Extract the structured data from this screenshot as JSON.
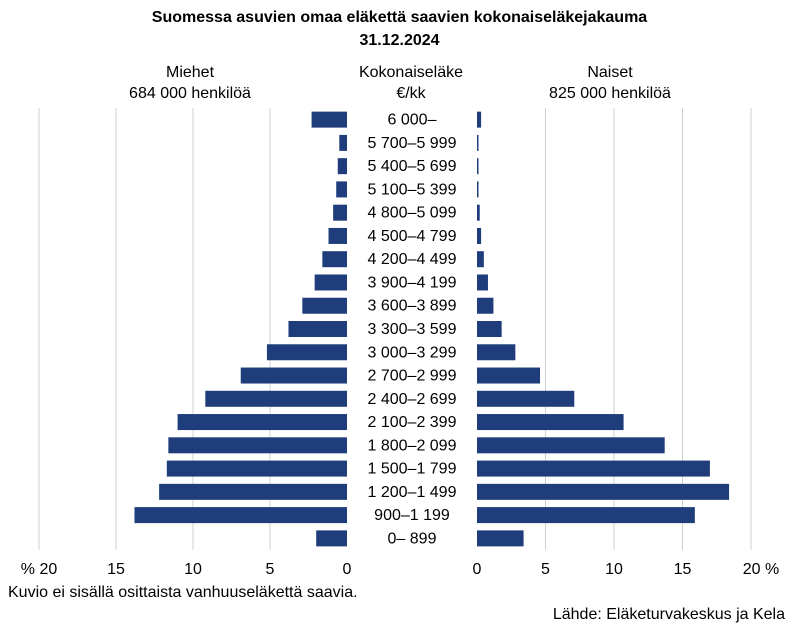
{
  "chart_data": {
    "type": "bar",
    "orientation": "horizontal",
    "layout": "population-pyramid",
    "title_line1": "Suomessa asuvien omaa eläkettä saavien kokonaiseläkejakauma",
    "title_line2": "31.12.2024",
    "center_label_line1": "Kokonaiseläke",
    "center_label_line2": "€/kk",
    "left_header_line1": "Miehet",
    "left_header_line2": "684 000 henkilöä",
    "right_header_line1": "Naiset",
    "right_header_line2": "825 000 henkilöä",
    "categories": [
      "6 000–",
      "5 700–5 999",
      "5 400–5 699",
      "5 100–5 399",
      "4 800–5 099",
      "4 500–4 799",
      "4 200–4 499",
      "3 900–4 199",
      "3 600–3 899",
      "3 300–3 599",
      "3 000–3 299",
      "2 700–2 999",
      "2 400–2 699",
      "2 100–2 399",
      "1 800–2 099",
      "1 500–1 799",
      "1 200–1 499",
      "900–1 199",
      "0–   899"
    ],
    "series": [
      {
        "name": "Miehet",
        "color": "#1f3d7a",
        "values": [
          2.3,
          0.5,
          0.6,
          0.7,
          0.9,
          1.2,
          1.6,
          2.1,
          2.9,
          3.8,
          5.2,
          6.9,
          9.2,
          11.0,
          11.6,
          11.7,
          12.2,
          13.8,
          2.0
        ]
      },
      {
        "name": "Naiset",
        "color": "#1f3d7a",
        "values": [
          0.3,
          0.05,
          0.1,
          0.1,
          0.2,
          0.3,
          0.5,
          0.8,
          1.2,
          1.8,
          2.8,
          4.6,
          7.1,
          10.7,
          13.7,
          17.0,
          18.4,
          15.9,
          3.4
        ]
      }
    ],
    "left_axis": {
      "range": [
        0,
        20
      ],
      "ticks": [
        "% 20",
        "15",
        "10",
        "5",
        "0"
      ]
    },
    "right_axis": {
      "range": [
        0,
        20
      ],
      "ticks": [
        "0",
        "5",
        "10",
        "15",
        "20 %"
      ]
    },
    "grid": true,
    "footnote": "Kuvio ei sisällä osittaista vanhuuseläkettä saavia.",
    "source": "Lähde: Eläketurvakeskus ja Kela"
  }
}
